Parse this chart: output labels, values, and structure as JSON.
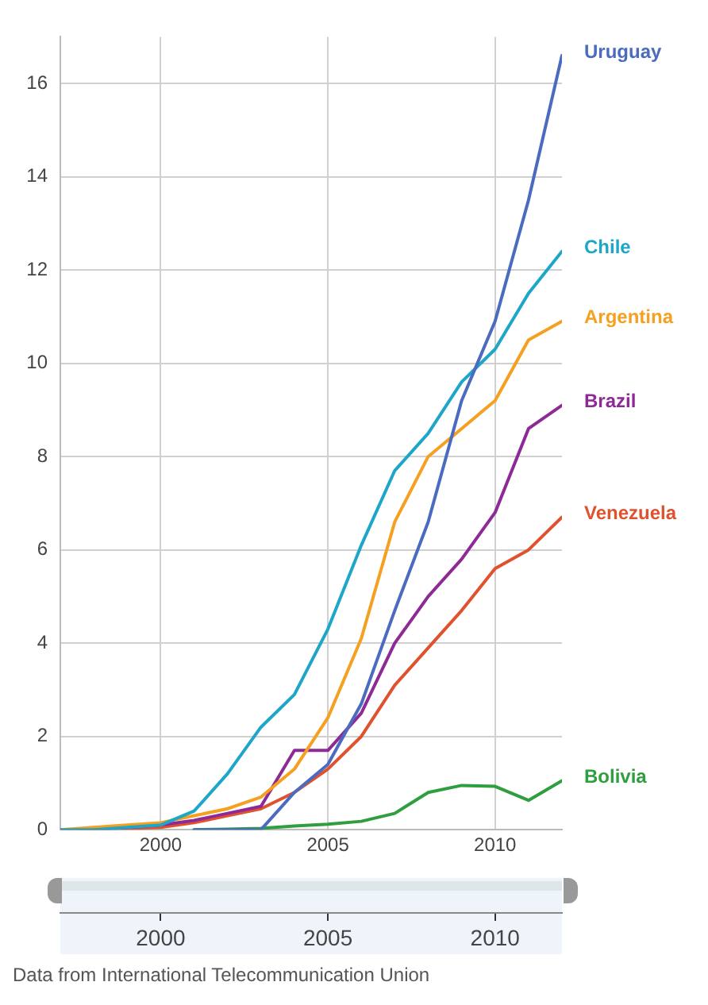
{
  "chart_data": {
    "type": "line",
    "x": [
      1997,
      1998,
      1999,
      2000,
      2001,
      2002,
      2003,
      2004,
      2005,
      2006,
      2007,
      2008,
      2009,
      2010,
      2011,
      2012
    ],
    "series": [
      {
        "name": "Uruguay",
        "color": "#4a6bbf",
        "values": [
          null,
          null,
          null,
          null,
          0,
          0,
          0,
          0.8,
          1.4,
          2.7,
          4.7,
          6.6,
          9.2,
          10.9,
          13.5,
          16.6
        ]
      },
      {
        "name": "Chile",
        "color": "#1ea6c8",
        "values": [
          0,
          0,
          0.05,
          0.1,
          0.4,
          1.2,
          2.2,
          2.9,
          4.3,
          6.1,
          7.7,
          8.5,
          9.6,
          10.3,
          11.5,
          12.4
        ]
      },
      {
        "name": "Argentina",
        "color": "#f5a020",
        "values": [
          0,
          0.05,
          0.1,
          0.15,
          0.3,
          0.45,
          0.7,
          1.3,
          2.4,
          4.1,
          6.6,
          8.0,
          8.6,
          9.2,
          10.5,
          10.9
        ]
      },
      {
        "name": "Brazil",
        "color": "#8e2a96",
        "values": [
          0,
          0,
          0.05,
          0.1,
          0.2,
          0.35,
          0.5,
          1.7,
          1.7,
          2.5,
          4.0,
          5.0,
          5.8,
          6.8,
          8.6,
          9.1
        ]
      },
      {
        "name": "Venezuela",
        "color": "#e0522e",
        "values": [
          0,
          0,
          0.03,
          0.05,
          0.15,
          0.3,
          0.45,
          0.8,
          1.3,
          2.0,
          3.1,
          3.9,
          4.7,
          5.6,
          6.0,
          6.7
        ]
      },
      {
        "name": "Bolivia",
        "color": "#2f9e3e",
        "values": [
          null,
          null,
          null,
          null,
          0,
          0.01,
          0.03,
          0.08,
          0.12,
          0.18,
          0.35,
          0.8,
          0.95,
          0.93,
          0.63,
          1.05
        ]
      }
    ],
    "xlim": [
      1997,
      2012
    ],
    "xticks": [
      2000,
      2005,
      2010
    ],
    "x2lim": [
      1997,
      2012
    ],
    "x2ticks": [
      2000,
      2005,
      2010
    ],
    "ylim": [
      0,
      17
    ],
    "yticks": [
      0,
      2,
      4,
      6,
      8,
      10,
      12,
      14,
      16
    ],
    "grid": true,
    "legend": false,
    "marker": "none",
    "line_style": "solid",
    "annotations": [
      "Data from International Telecommunication Union"
    ]
  }
}
